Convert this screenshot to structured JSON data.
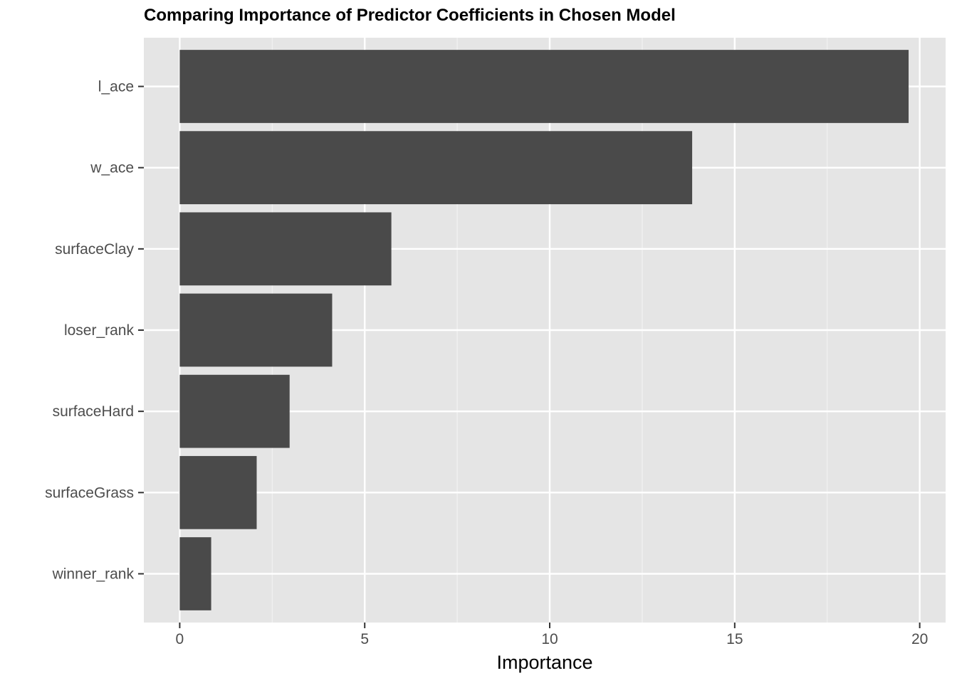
{
  "chart_data": {
    "type": "bar",
    "orientation": "horizontal",
    "title": "Comparing Importance of Predictor Coefficients in Chosen Model",
    "xlabel": "Importance",
    "ylabel": "",
    "categories": [
      "l_ace",
      "w_ace",
      "surfaceClay",
      "loser_rank",
      "surfaceHard",
      "surfaceGrass",
      "winner_rank"
    ],
    "values": [
      19.7,
      13.85,
      5.72,
      4.12,
      2.97,
      2.08,
      0.85
    ],
    "xlim": [
      -0.97,
      20.7
    ],
    "xticks": [
      0,
      5,
      10,
      15,
      20
    ],
    "xtick_labels": [
      "0",
      "5",
      "10",
      "15",
      "20"
    ],
    "grid": true,
    "legend": "none",
    "colors": {
      "bar": "#4a4a4a",
      "panel_background": "#e5e5e5",
      "grid_major": "#ffffff",
      "grid_minor": "#f2f2f2",
      "tick": "#333333"
    }
  }
}
